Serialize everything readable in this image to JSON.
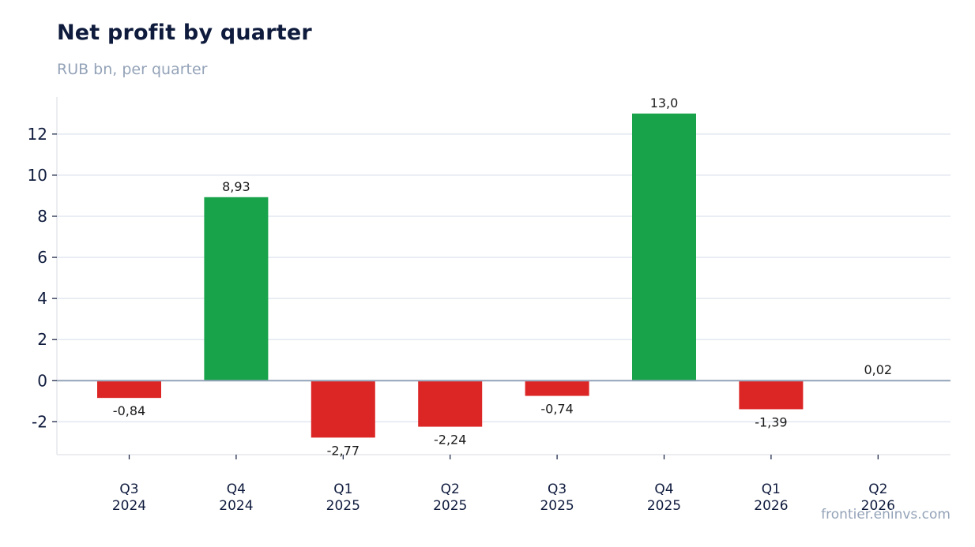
{
  "header": {
    "title": "Net profit by quarter",
    "subtitle": "RUB bn, per quarter"
  },
  "footer": {
    "source": "frontier.eninvs.com"
  },
  "colors": {
    "positive": "#18a34a",
    "negative": "#dc2626",
    "grid": "#e2e8f0",
    "zero_line": "#94a3b8",
    "axis": "#e5e7eb"
  },
  "chart_data": {
    "type": "bar",
    "categories": [
      [
        "Q3",
        "2024"
      ],
      [
        "Q4",
        "2024"
      ],
      [
        "Q1",
        "2025"
      ],
      [
        "Q2",
        "2025"
      ],
      [
        "Q3",
        "2025"
      ],
      [
        "Q4",
        "2025"
      ],
      [
        "Q1",
        "2026"
      ],
      [
        "Q2",
        "2026"
      ]
    ],
    "values": [
      -0.84,
      8.93,
      -2.77,
      -2.24,
      -0.74,
      13.0,
      -1.39,
      0.02
    ],
    "data_labels": [
      "-0,84",
      "8,93",
      "-2,77",
      "-2,24",
      "-0,74",
      "13,0",
      "-1,39",
      "0,02"
    ],
    "title": "Net profit by quarter",
    "subtitle": "RUB bn, per quarter",
    "xlabel": "",
    "ylabel": "",
    "ylim": [
      -3.6,
      13.8
    ],
    "yticks": [
      -2,
      0,
      2,
      4,
      6,
      8,
      10,
      12
    ],
    "grid": true,
    "legend": "none"
  }
}
